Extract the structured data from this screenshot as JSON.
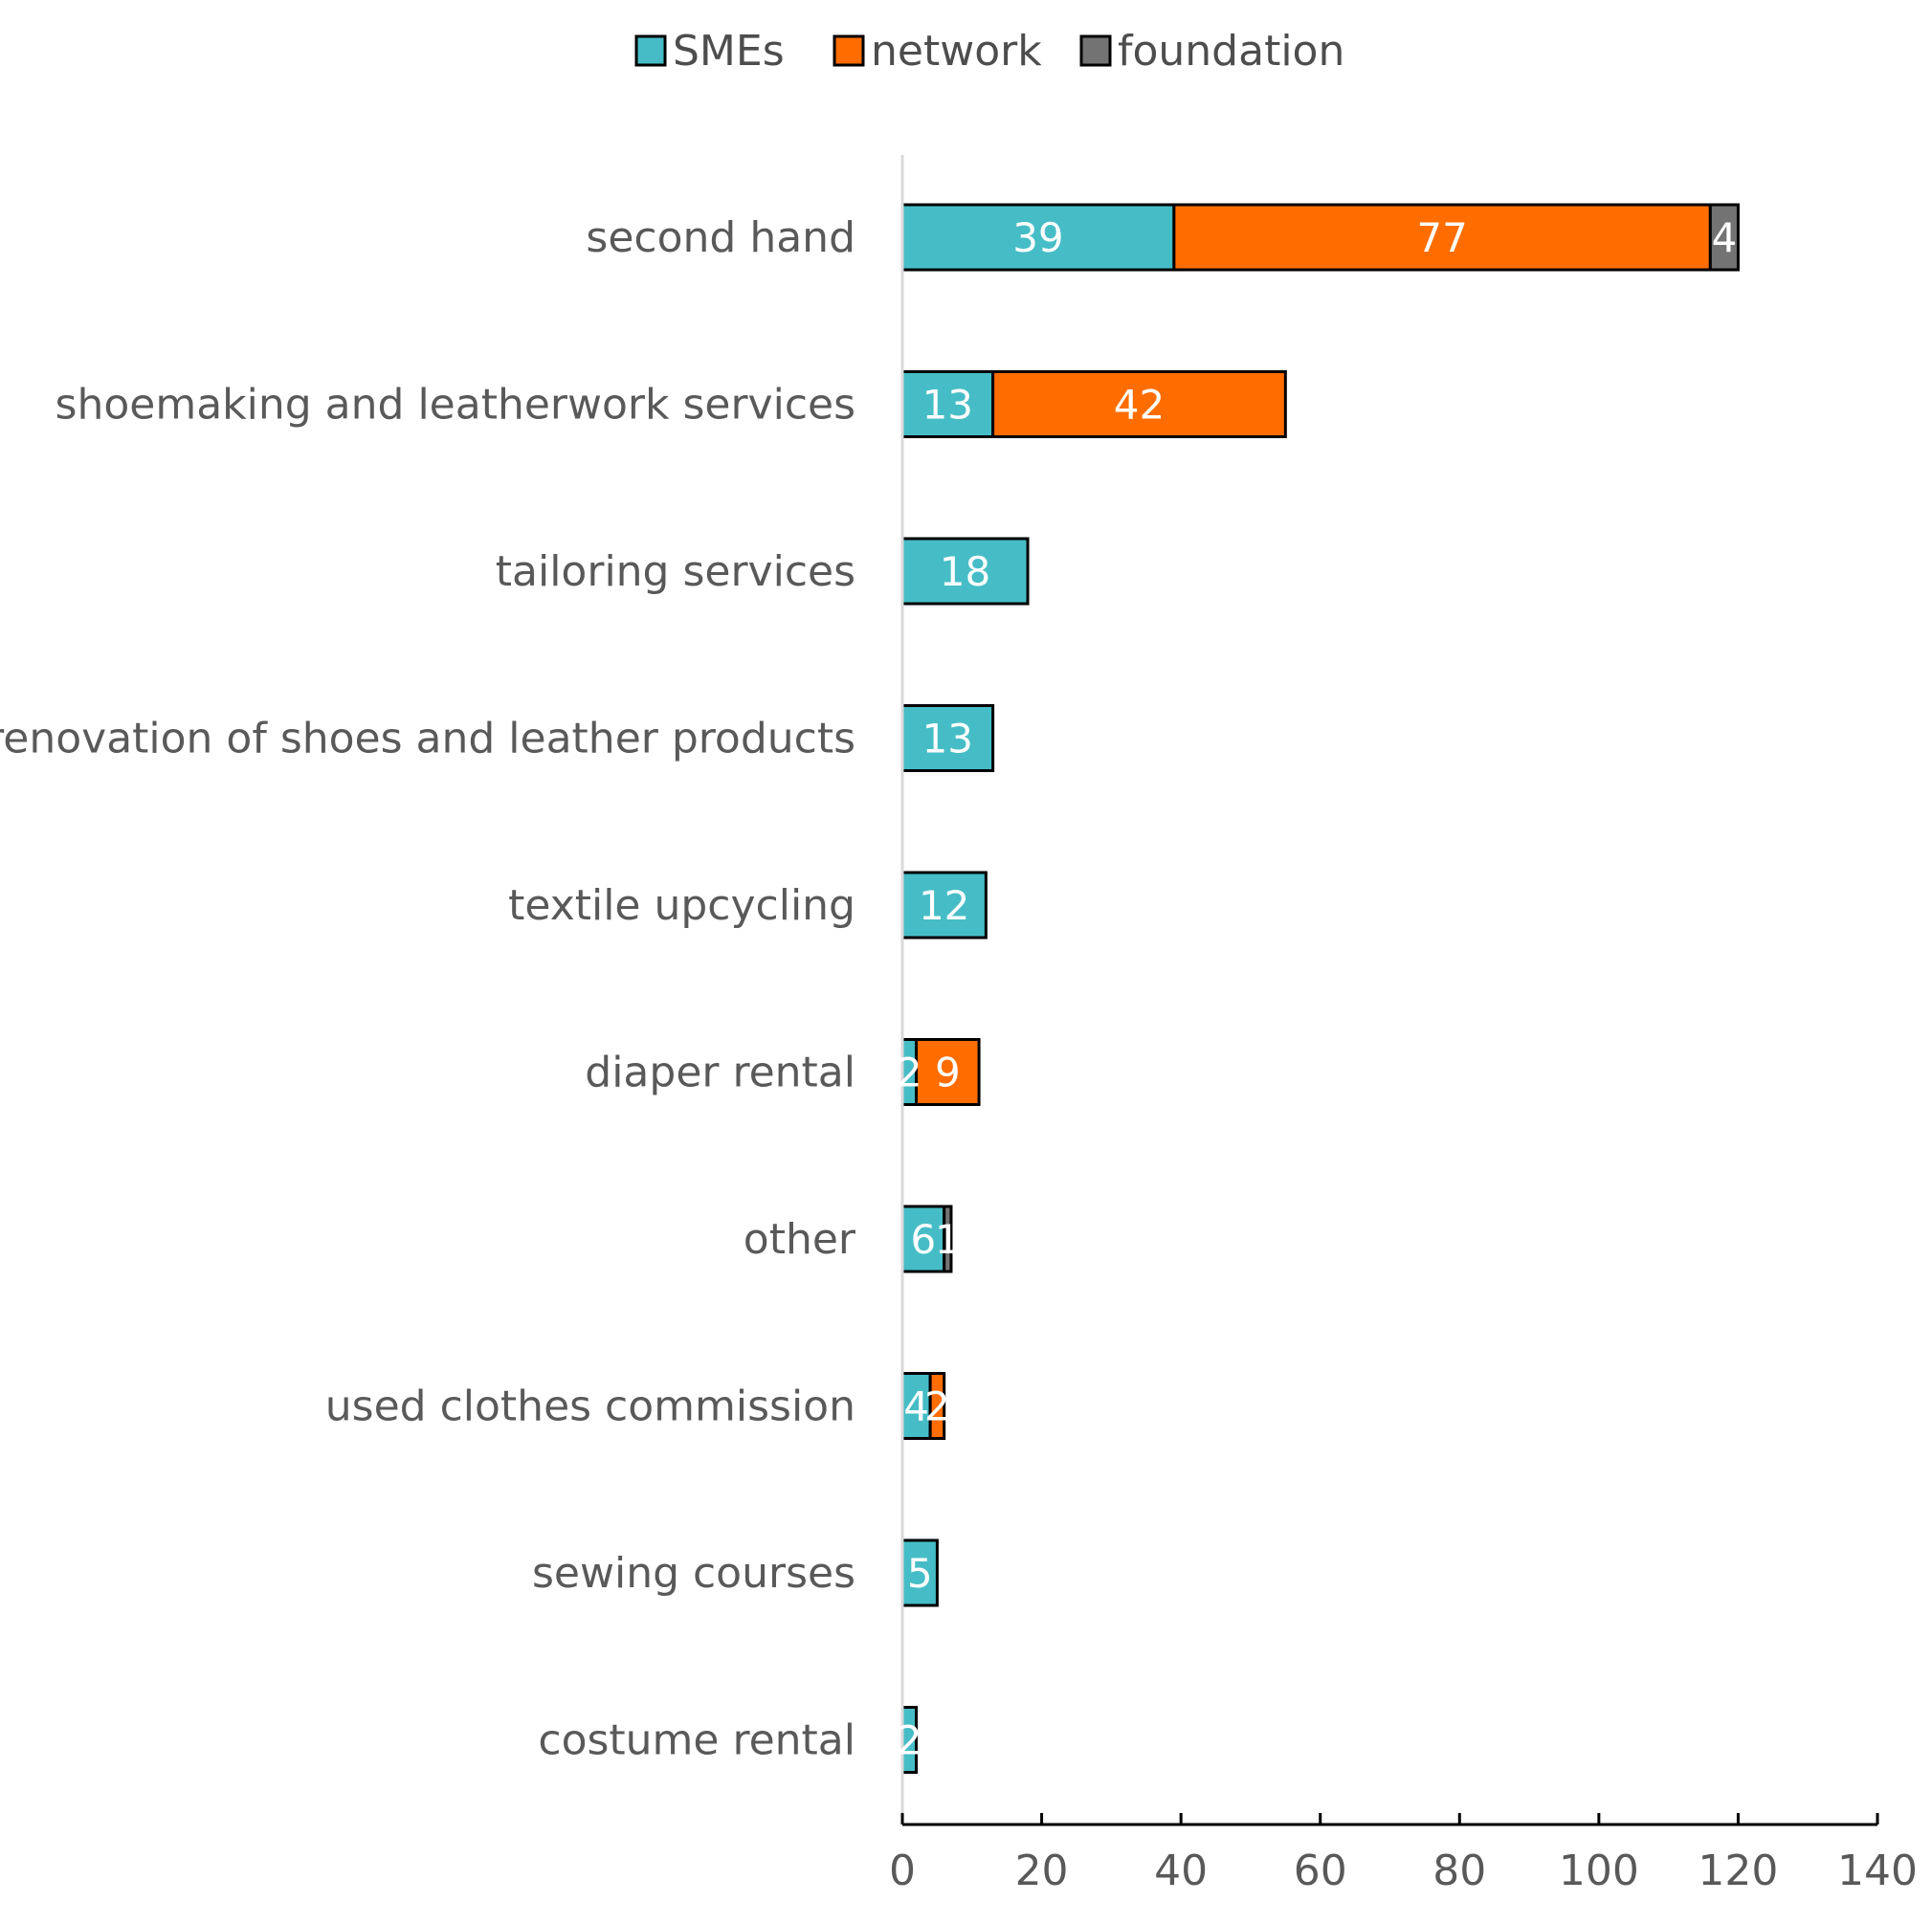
{
  "chart_data": {
    "type": "bar",
    "orientation": "horizontal",
    "stacked": true,
    "title": "",
    "xlabel": "",
    "ylabel": "",
    "xlim": [
      0,
      140
    ],
    "x_ticks": [
      0,
      20,
      40,
      60,
      80,
      100,
      120,
      140
    ],
    "legend_position": "top-center",
    "grid": false,
    "categories": [
      "second hand",
      "shoemaking and leatherwork services",
      "tailoring services",
      "renovation of shoes and leather products",
      "textile upcycling",
      "diaper rental",
      "other",
      "used clothes commission",
      "sewing courses",
      "costume rental"
    ],
    "series": [
      {
        "name": "SMEs",
        "color": "#46BDC6",
        "values": [
          39,
          13,
          18,
          13,
          12,
          2,
          6,
          4,
          5,
          2
        ]
      },
      {
        "name": "network",
        "color": "#FF6D00",
        "values": [
          77,
          42,
          0,
          0,
          0,
          9,
          0,
          2,
          0,
          0
        ]
      },
      {
        "name": "foundation",
        "color": "#737373",
        "values": [
          4,
          0,
          0,
          0,
          0,
          0,
          1,
          0,
          0,
          0
        ]
      }
    ]
  }
}
